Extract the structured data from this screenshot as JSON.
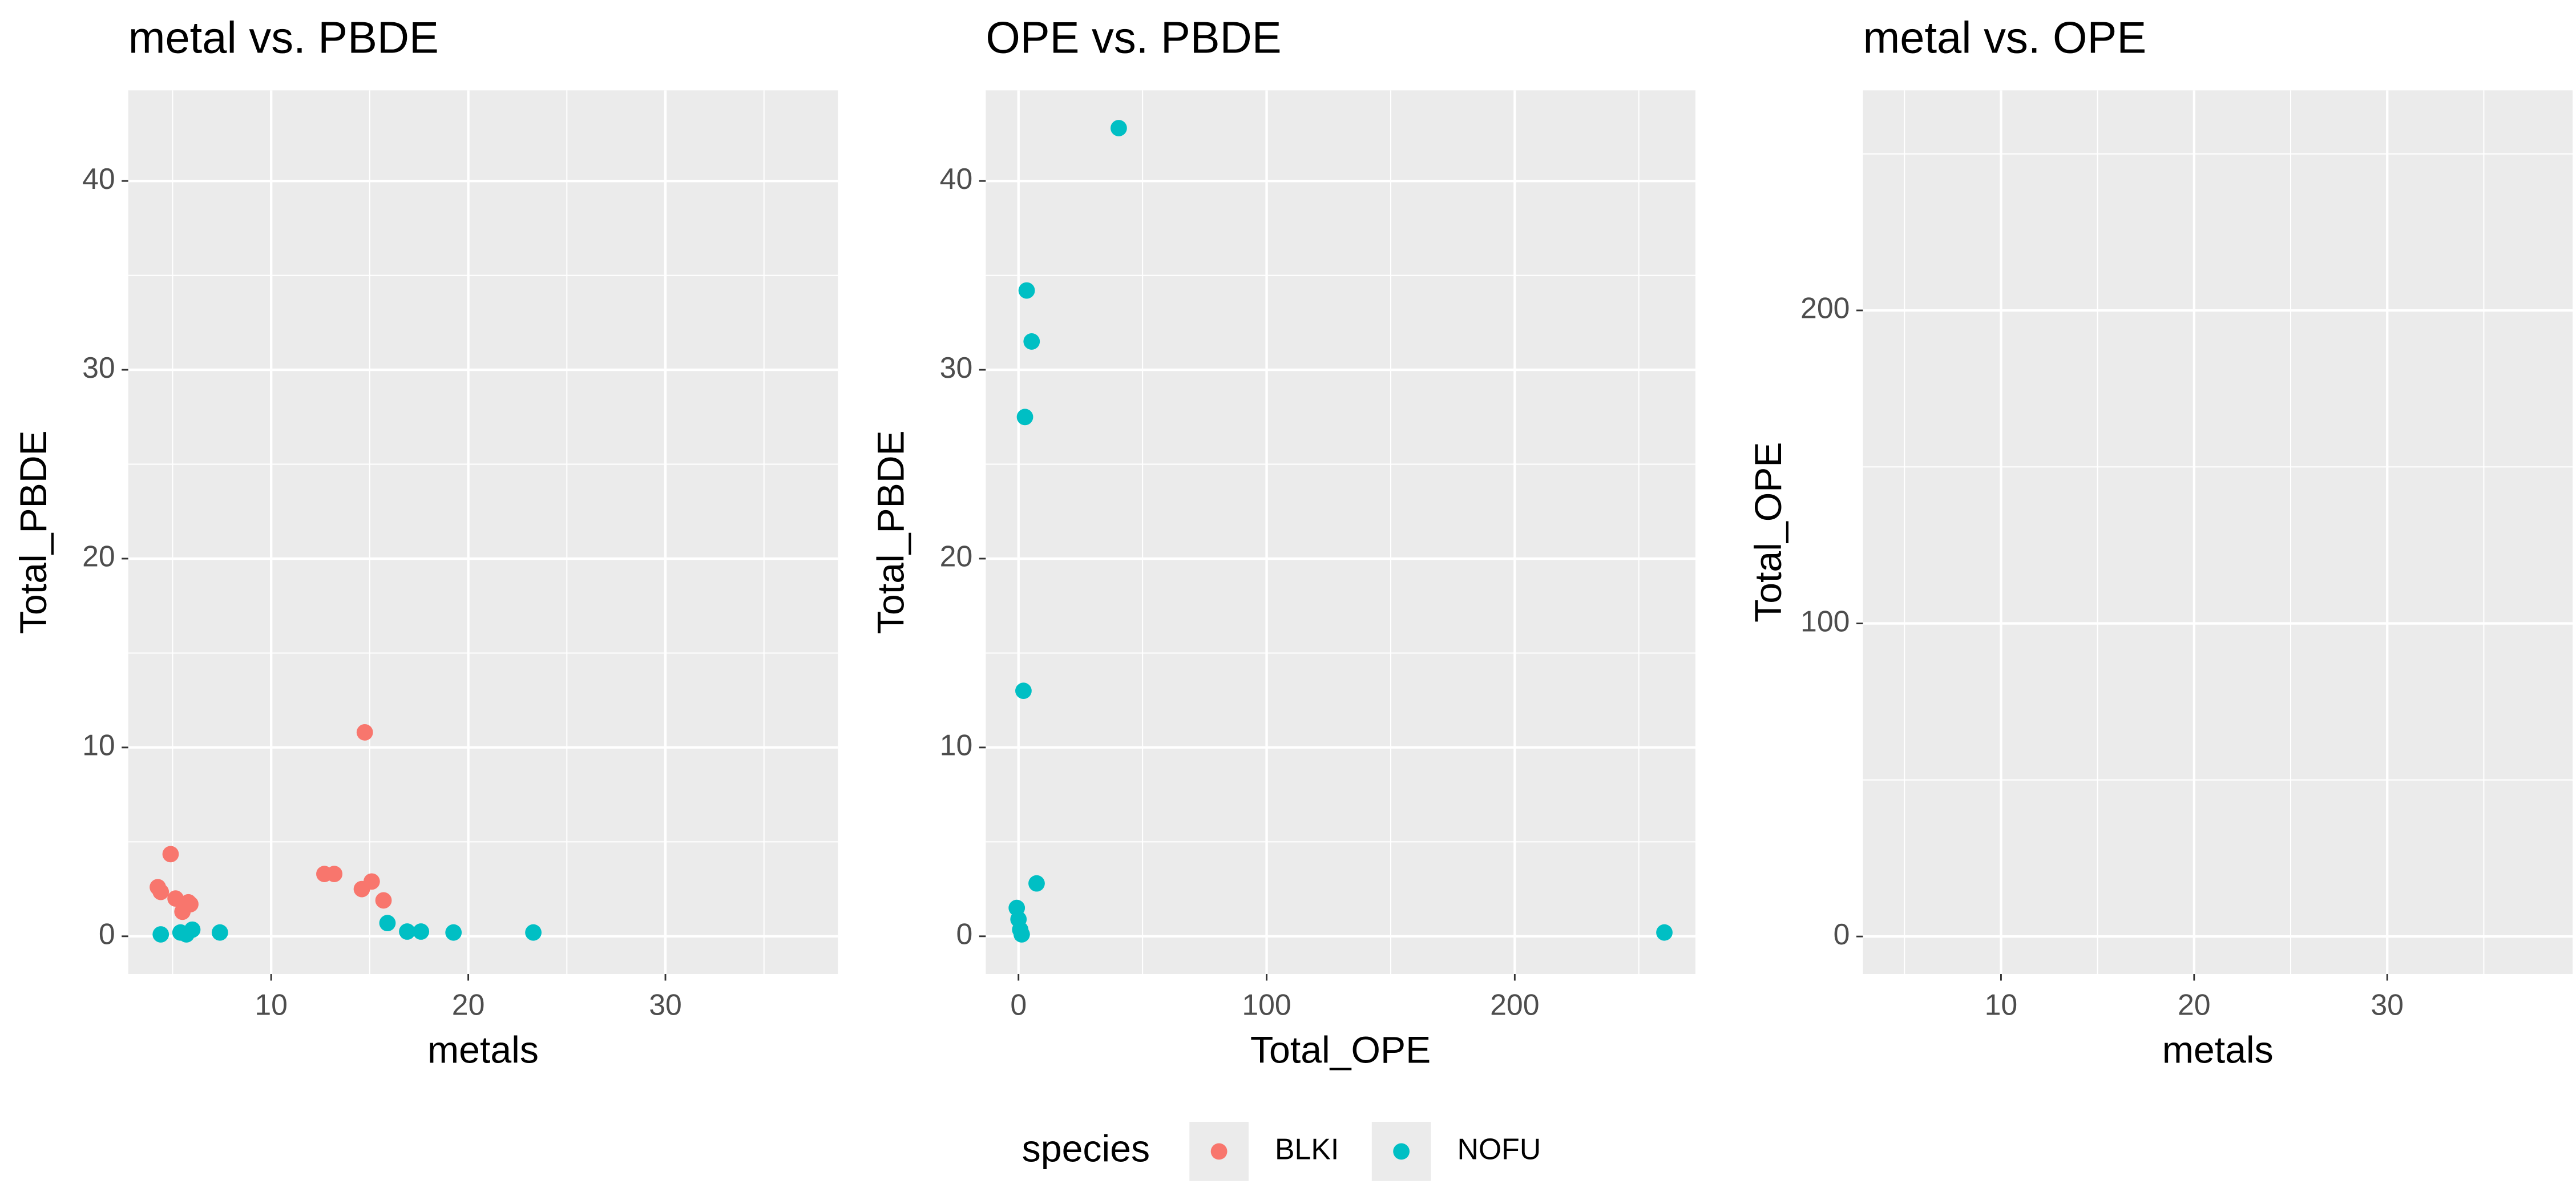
{
  "chart_data": [
    {
      "type": "scatter",
      "title": "metal vs. PBDE",
      "x_label": "metals",
      "y_label": "Total_PBDE",
      "xlim": [
        2.75,
        38.75
      ],
      "ylim": [
        -2,
        44.8
      ],
      "xticks": [
        10,
        20,
        30
      ],
      "yticks": [
        0,
        10,
        20,
        30,
        40
      ],
      "grid": true,
      "series": [
        {
          "name": "BLKI",
          "color": "#F8766D",
          "x": [
            4.25,
            4.4,
            4.9,
            5.15,
            5.5,
            5.8,
            5.9,
            12.7,
            13.2,
            14.75,
            14.6,
            15.1,
            15.7
          ],
          "values": [
            2.6,
            2.35,
            4.35,
            2.0,
            1.3,
            1.8,
            1.7,
            3.3,
            3.3,
            10.8,
            2.5,
            2.9,
            1.9
          ]
        },
        {
          "name": "NOFU",
          "color": "#00BFC4",
          "x": [
            4.4,
            5.4,
            5.7,
            6.0,
            7.4,
            15.9,
            16.9,
            17.6,
            19.25,
            23.3
          ],
          "values": [
            0.1,
            0.2,
            0.1,
            0.35,
            0.2,
            0.7,
            0.25,
            0.25,
            0.2,
            0.2
          ]
        }
      ]
    },
    {
      "type": "scatter",
      "title": "OPE vs. PBDE",
      "x_label": "Total_OPE",
      "y_label": "Total_PBDE",
      "xlim": [
        -13.2,
        272.8
      ],
      "ylim": [
        -2,
        44.8
      ],
      "xticks": [
        0,
        100,
        200
      ],
      "yticks": [
        0,
        10,
        20,
        30,
        40
      ],
      "grid": true,
      "series": [
        {
          "name": "NOFU",
          "color": "#00BFC4",
          "x": [
            40.4,
            3.3,
            5.3,
            2.6,
            2.0,
            7.3,
            -0.7,
            0,
            0.7,
            1.3,
            260.3
          ],
          "values": [
            42.8,
            34.2,
            31.5,
            27.5,
            13.0,
            2.8,
            1.5,
            0.9,
            0.35,
            0.1,
            0.2
          ]
        }
      ]
    },
    {
      "type": "scatter",
      "title": "metal vs. OPE",
      "x_label": "metals",
      "y_label": "Total_OPE",
      "xlim": [
        2.85,
        39.6
      ],
      "ylim": [
        -12,
        270.3
      ],
      "xticks": [
        10,
        20,
        30
      ],
      "yticks": [
        0,
        100,
        200
      ],
      "grid": true,
      "series": []
    }
  ],
  "legend": {
    "title": "species",
    "position": "bottom"
  }
}
